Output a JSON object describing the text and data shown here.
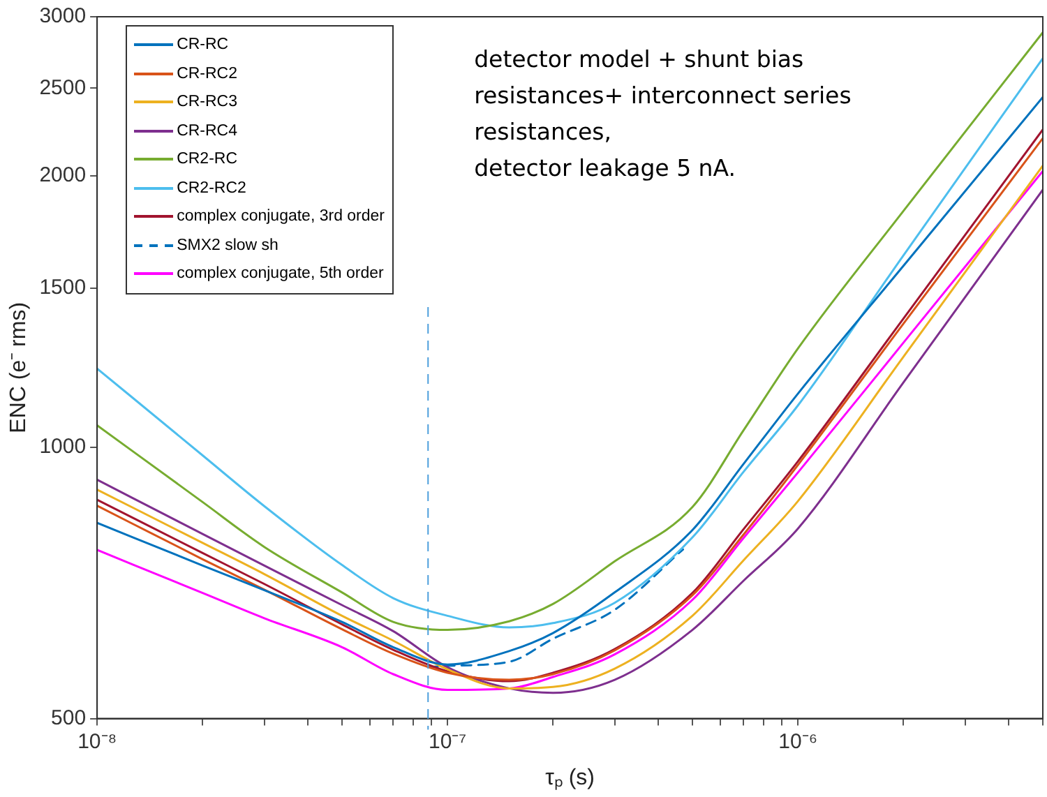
{
  "chart_data": {
    "type": "line",
    "xlabel": "τₚ (s)",
    "ylabel": "ENC (e⁻ rms)",
    "log": "xy",
    "grid": false,
    "legend": "top left",
    "marker": "none",
    "xlim": [
      1e-08,
      5e-06
    ],
    "ylim": [
      500,
      3000
    ],
    "xticks": [
      {
        "value": 1e-08,
        "label": "10⁻⁸"
      },
      {
        "value": 2e-08,
        "label": null
      },
      {
        "value": 3e-08,
        "label": null
      },
      {
        "value": 4e-08,
        "label": null
      },
      {
        "value": 5e-08,
        "label": null
      },
      {
        "value": 6e-08,
        "label": null
      },
      {
        "value": 7e-08,
        "label": null
      },
      {
        "value": 8e-08,
        "label": null
      },
      {
        "value": 9e-08,
        "label": null
      },
      {
        "value": 1e-07,
        "label": "10⁻⁷"
      },
      {
        "value": 2e-07,
        "label": null
      },
      {
        "value": 3e-07,
        "label": null
      },
      {
        "value": 4e-07,
        "label": null
      },
      {
        "value": 5e-07,
        "label": null
      },
      {
        "value": 6e-07,
        "label": null
      },
      {
        "value": 7e-07,
        "label": null
      },
      {
        "value": 8e-07,
        "label": null
      },
      {
        "value": 9e-07,
        "label": null
      },
      {
        "value": 1e-06,
        "label": "10⁻⁶"
      },
      {
        "value": 2e-06,
        "label": null
      },
      {
        "value": 3e-06,
        "label": null
      },
      {
        "value": 4e-06,
        "label": null
      },
      {
        "value": 5e-06,
        "label": null
      }
    ],
    "yticks": [
      500,
      1000,
      1500,
      2000,
      2500,
      3000
    ],
    "x": [
      1e-08,
      2e-08,
      3e-08,
      5e-08,
      7e-08,
      1e-07,
      1.5e-07,
      2e-07,
      3e-07,
      5e-07,
      7e-07,
      1e-06,
      2e-06,
      5e-06
    ],
    "series": [
      {
        "name": "CR-RC",
        "color": "#0072bd",
        "values": [
          824,
          739,
          694,
          640,
          600,
          574,
          594,
          622,
          690,
          809,
          958,
          1146,
          1588,
          2443
        ]
      },
      {
        "name": "CR-RC2",
        "color": "#d95319",
        "values": [
          861,
          751,
          695,
          628,
          590,
          562,
          552,
          560,
          595,
          685,
          800,
          955,
          1370,
          2200
        ]
      },
      {
        "name": "CR-RC3",
        "color": "#edb120",
        "values": [
          897,
          783,
          723,
          650,
          610,
          567,
          540,
          542,
          568,
          650,
          749,
          871,
          1259,
          2051
        ]
      },
      {
        "name": "CR-RC4",
        "color": "#7e2f8e",
        "values": [
          920,
          801,
          739,
          668,
          625,
          570,
          540,
          534,
          552,
          627,
          711,
          812,
          1179,
          1929
        ]
      },
      {
        "name": "CR2-RC",
        "color": "#77ac30",
        "values": [
          1057,
          869,
          775,
          690,
          640,
          627,
          641,
          670,
          747,
          858,
          1044,
          1286,
          1827,
          2882
        ]
      },
      {
        "name": "CR2-RC2",
        "color": "#4dbeee",
        "values": [
          1222,
          979,
          860,
          740,
          680,
          650,
          631,
          638,
          672,
          794,
          939,
          1112,
          1631,
          2698
        ]
      },
      {
        "name": "complex conjugate, 3rd order",
        "color": "#a2142f",
        "values": [
          874,
          763,
          705,
          636,
          596,
          564,
          550,
          562,
          597,
          689,
          811,
          964,
          1388,
          2249
        ]
      },
      {
        "name": "SMX2 slow sh",
        "color": "#0072bd",
        "line_style": "dashed",
        "x": [
          8.8e-08,
          1e-07,
          1.5e-07,
          2e-07,
          3e-07,
          4.7e-07
        ],
        "values": [
          570,
          572,
          578,
          613,
          660,
          770
        ]
      },
      {
        "name": "complex conjugate, 5th order",
        "color": "#ff00ff",
        "values": [
          769,
          689,
          646,
          600,
          560,
          538,
          540,
          556,
          589,
          677,
          793,
          937,
          1305,
          2023
        ]
      }
    ],
    "ref_lines": [
      {
        "axis": "x",
        "value": 8.8e-08,
        "color": "#4d9fdc",
        "line_style": "dashed"
      }
    ],
    "annotations": [
      "detector model + shunt bias\nresistances+ interconnect series\nresistances,\ndetector leakage 5 nA."
    ]
  }
}
